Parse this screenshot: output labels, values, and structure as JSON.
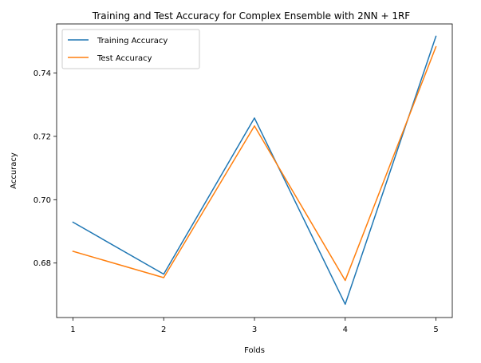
{
  "chart_data": {
    "type": "line",
    "title": "Training and Test Accuracy for Complex Ensemble with 2NN + 1RF",
    "xlabel": "Folds",
    "ylabel": "Accuracy",
    "x": [
      1,
      2,
      3,
      4,
      5
    ],
    "x_ticks": [
      "1",
      "2",
      "3",
      "4",
      "5"
    ],
    "y_ticks": [
      "0.68",
      "0.70",
      "0.72",
      "0.74"
    ],
    "y_tick_values": [
      0.68,
      0.7,
      0.72,
      0.74
    ],
    "xlim": [
      0.82,
      5.18
    ],
    "ylim": [
      0.6628,
      0.7555
    ],
    "grid": false,
    "legend_position": "top-left",
    "series": [
      {
        "name": "Training Accuracy",
        "color": "#1f77b4",
        "values": [
          0.6929,
          0.6765,
          0.7258,
          0.667,
          0.7516
        ]
      },
      {
        "name": "Test Accuracy",
        "color": "#ff7f0e",
        "values": [
          0.6837,
          0.6754,
          0.7233,
          0.6745,
          0.7483
        ]
      }
    ]
  }
}
